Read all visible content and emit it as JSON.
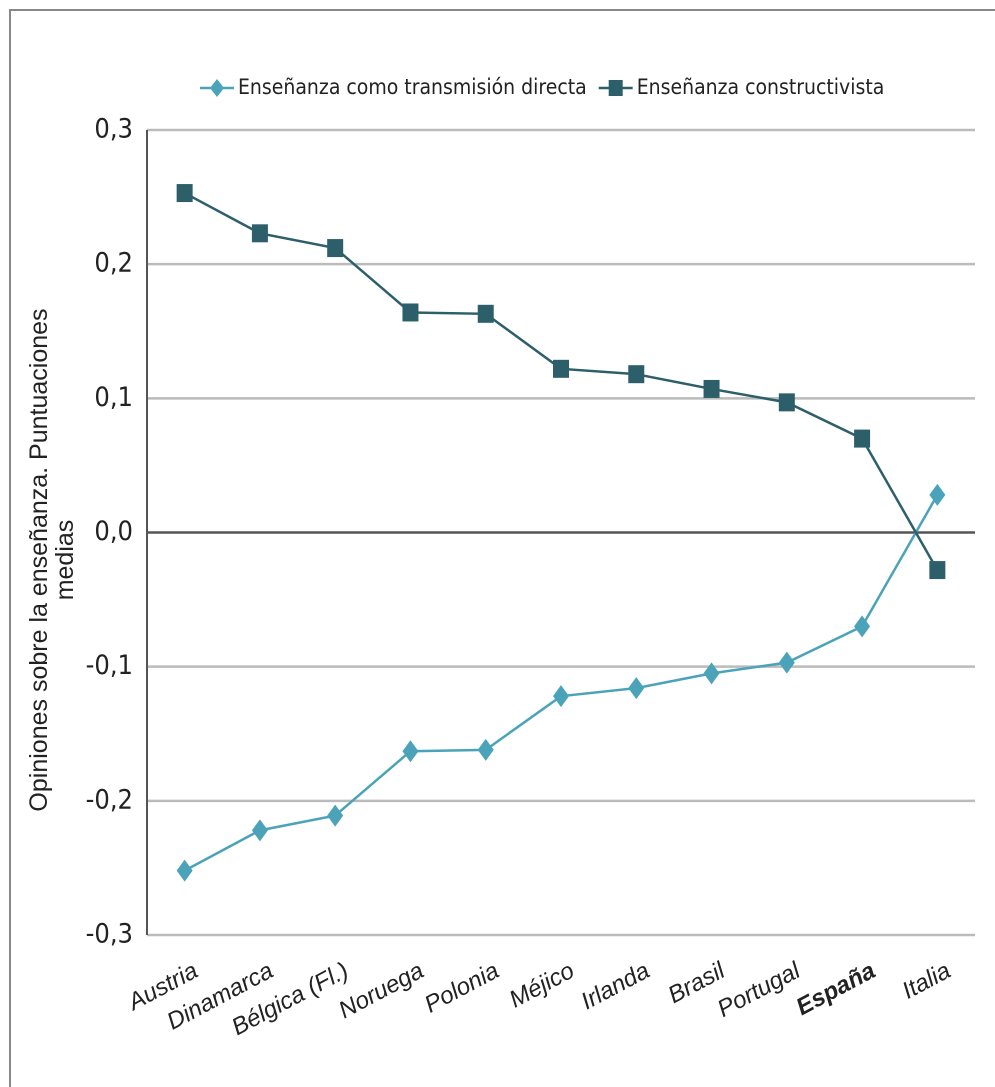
{
  "chart_data": {
    "type": "line",
    "ylabel": [
      "Opiniones sobre la enseñanza. Puntuaciones",
      "medias"
    ],
    "categories": [
      "Austria",
      "Dinamarca",
      "Bélgica (Fl.)",
      "Noruega",
      "Polonia",
      "Méjico",
      "Irlanda",
      "Brasil",
      "Portugal",
      "España",
      "Italia"
    ],
    "category_label_colors": [
      "#222",
      "#222",
      "#222",
      "#222",
      "#222",
      "#222",
      "#222",
      "#222",
      "#222",
      "#ee1111",
      "#222"
    ],
    "series": [
      {
        "name": "Enseñanza como transmisión directa",
        "color": "#4aa3b8",
        "marker": "diamond",
        "values": [
          -0.252,
          -0.222,
          -0.211,
          -0.163,
          -0.162,
          -0.122,
          -0.116,
          -0.105,
          -0.097,
          -0.07,
          0.028
        ]
      },
      {
        "name": "Enseñanza constructivista",
        "color": "#2d5f6b",
        "marker": "square",
        "values": [
          0.253,
          0.223,
          0.212,
          0.164,
          0.163,
          0.122,
          0.118,
          0.107,
          0.097,
          0.07,
          -0.028
        ]
      }
    ],
    "ylim": [
      -0.3,
      0.3
    ],
    "yticks": [
      {
        "value": -0.3,
        "label": "-0,3"
      },
      {
        "value": -0.2,
        "label": "-0,2"
      },
      {
        "value": -0.1,
        "label": "-0,1"
      },
      {
        "value": 0,
        "label": "0,0"
      },
      {
        "value": 0.1,
        "label": "0,1"
      },
      {
        "value": 0.2,
        "label": "0,2"
      },
      {
        "value": 0.3,
        "label": "0,3"
      }
    ],
    "grid": true,
    "legend": "top"
  }
}
